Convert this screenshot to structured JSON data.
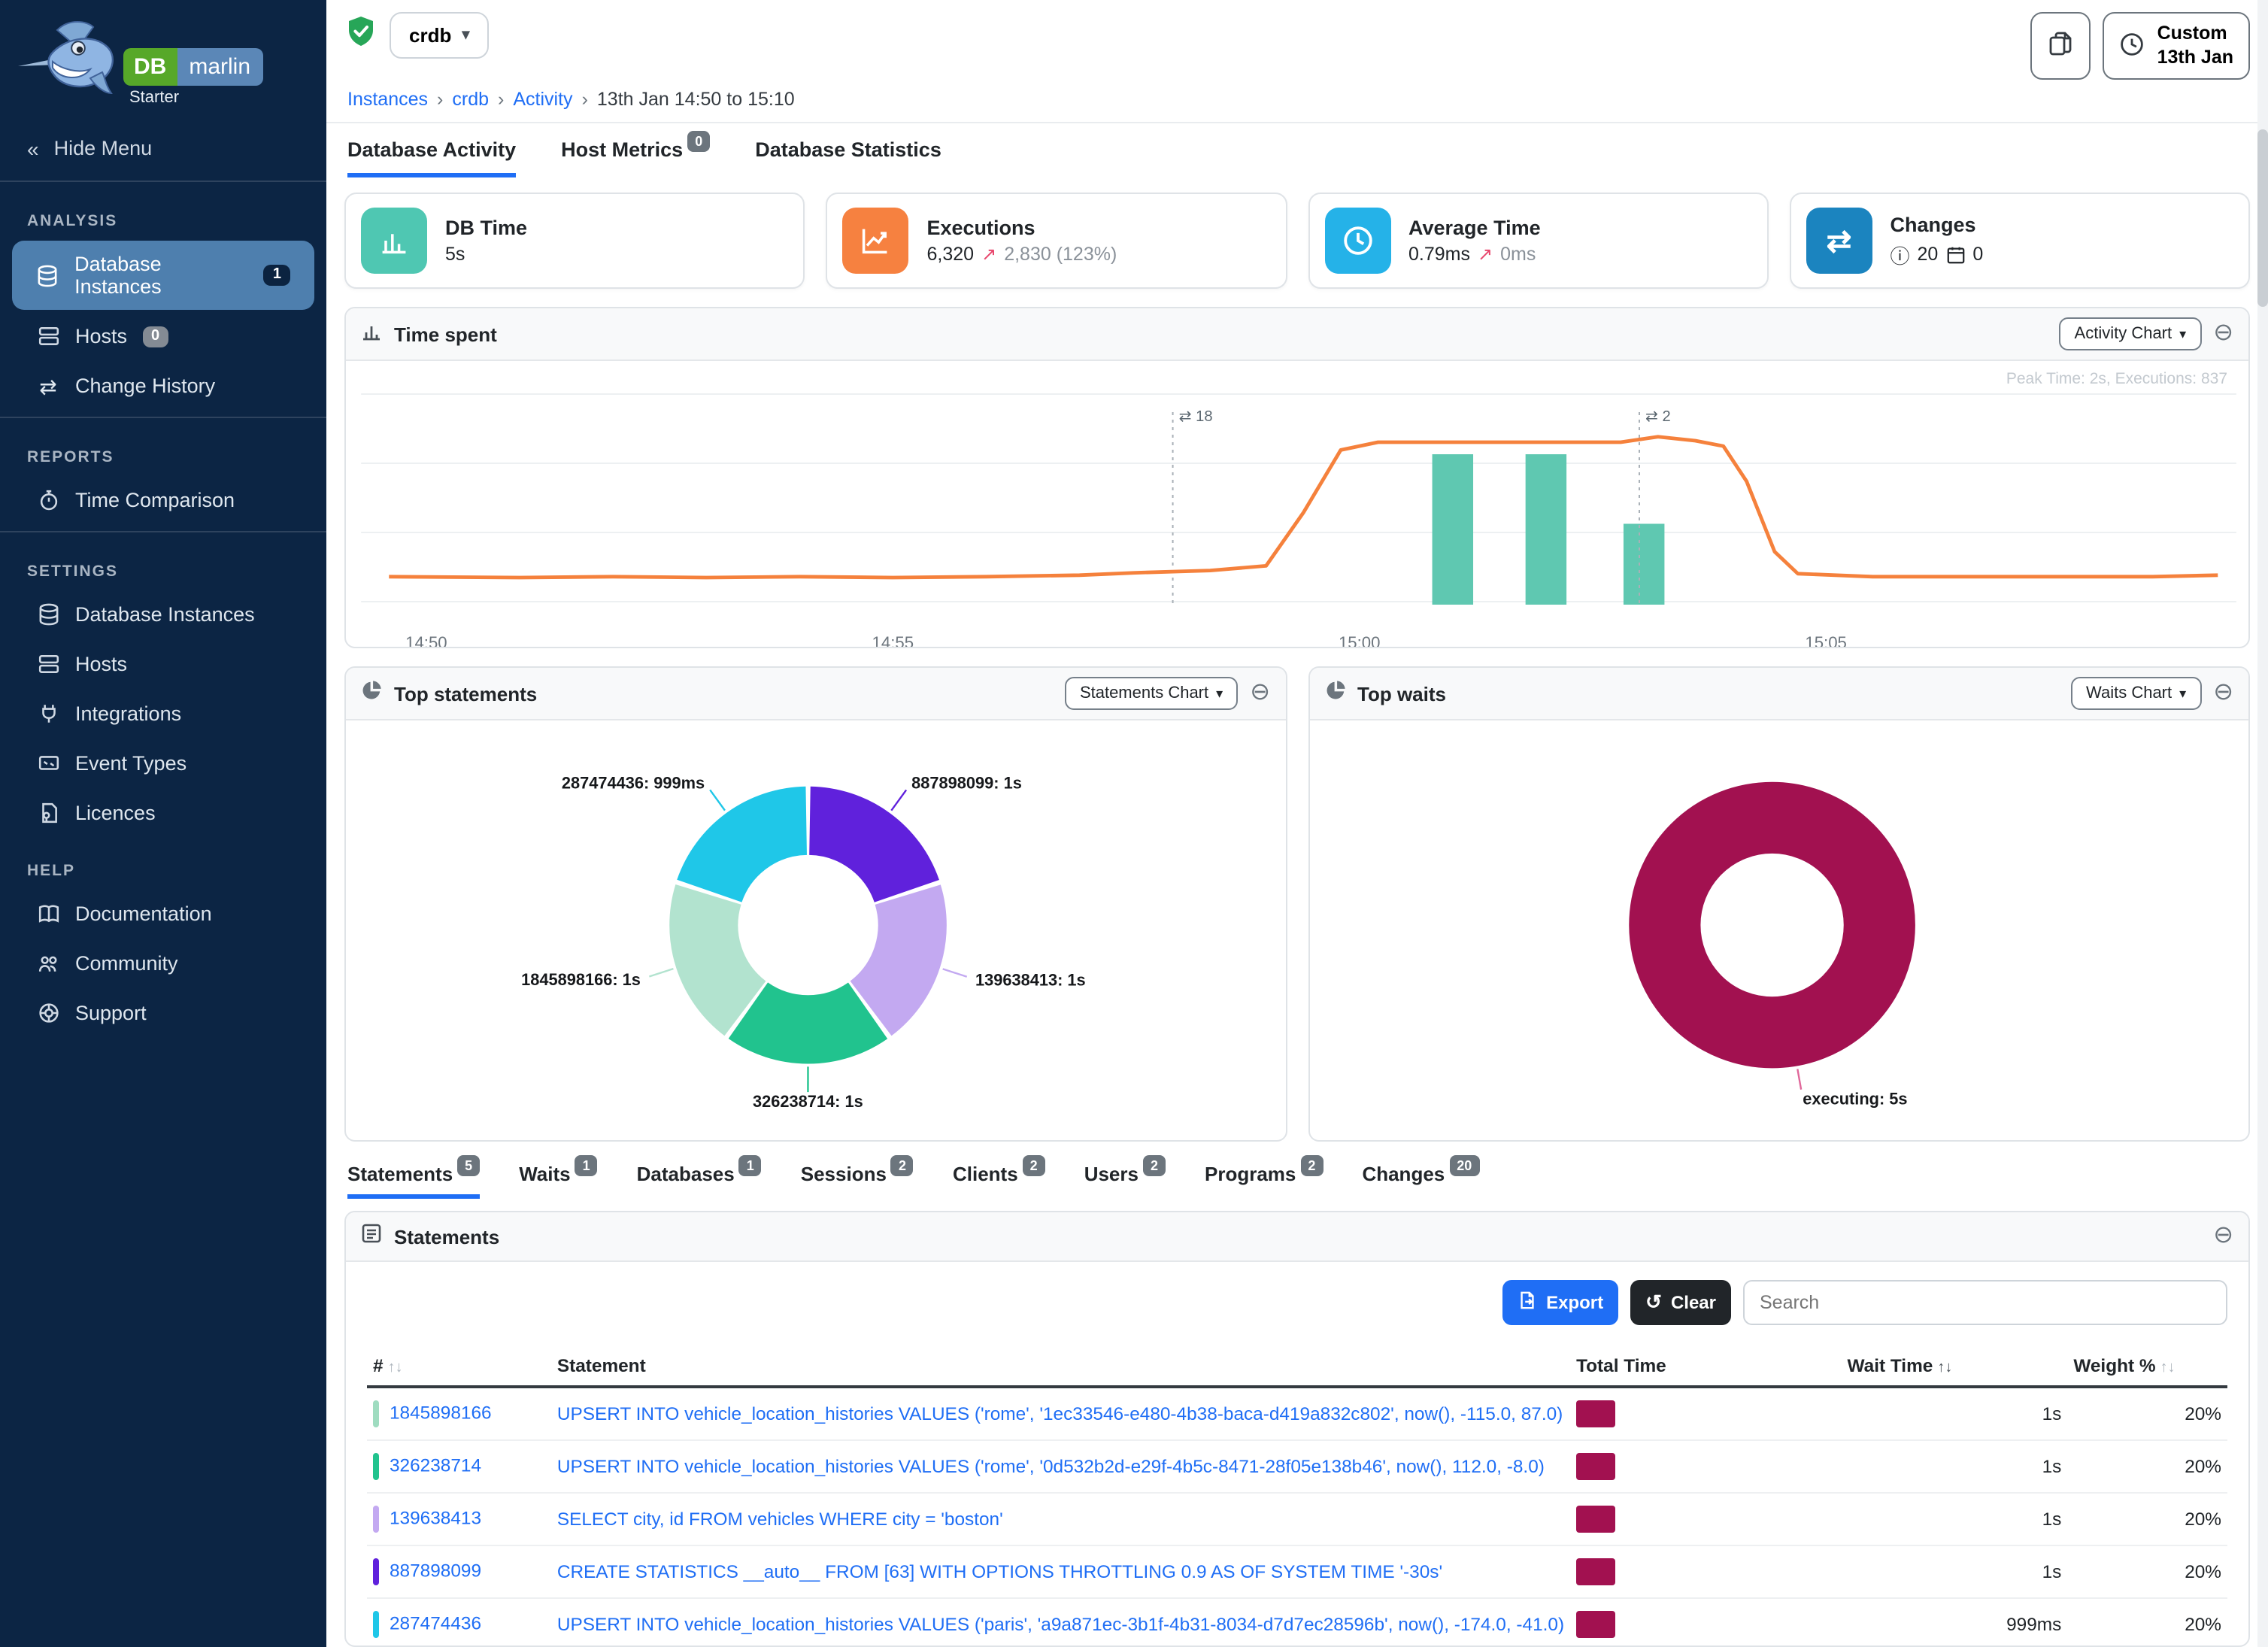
{
  "app": {
    "logo_db": "DB",
    "logo_marlin": "marlin",
    "plan": "Starter"
  },
  "icons": {
    "double_left": "«",
    "swap": "⇄",
    "collapse": "⊖",
    "up_right": "↗",
    "info": "ⓘ",
    "chevron_down": "▾",
    "crumb_sep": "›",
    "sort_up": "↑",
    "sort_down": "↓",
    "undo": "↺"
  },
  "sidebar": {
    "hide_menu": "Hide Menu",
    "sections": [
      {
        "title": "ANALYSIS",
        "items": [
          {
            "label": "Database Instances",
            "badge": "1"
          },
          {
            "label": "Hosts",
            "badge": "0"
          },
          {
            "label": "Change History"
          }
        ]
      },
      {
        "title": "REPORTS",
        "items": [
          {
            "label": "Time Comparison"
          }
        ]
      },
      {
        "title": "SETTINGS",
        "items": [
          {
            "label": "Database Instances"
          },
          {
            "label": "Hosts"
          },
          {
            "label": "Integrations"
          },
          {
            "label": "Event Types"
          },
          {
            "label": "Licences"
          }
        ]
      },
      {
        "title": "HELP",
        "items": [
          {
            "label": "Documentation"
          },
          {
            "label": "Community"
          },
          {
            "label": "Support"
          }
        ]
      }
    ]
  },
  "topbar": {
    "instance": "crdb",
    "breadcrumb": [
      "Instances",
      "crdb",
      "Activity",
      "13th Jan 14:50 to 15:10"
    ],
    "range_button": {
      "line1": "Custom",
      "line2": "13th Jan"
    }
  },
  "tabs": [
    {
      "label": "Database Activity"
    },
    {
      "label": "Host Metrics",
      "badge": "0"
    },
    {
      "label": "Database Statistics"
    }
  ],
  "cards": [
    {
      "title": "DB Time",
      "value": "5s"
    },
    {
      "title": "Executions",
      "value": "6,320",
      "delta": "2,830 (123%)"
    },
    {
      "title": "Average Time",
      "value": "0.79ms",
      "delta": "0ms"
    },
    {
      "title": "Changes",
      "info_count": "20",
      "calendar_count": "0"
    }
  ],
  "panels": {
    "time_spent": {
      "title": "Time spent",
      "chart_button": "Activity Chart",
      "peak_note": "Peak Time: 2s, Executions: 837"
    },
    "top_statements": {
      "title": "Top statements",
      "chart_button": "Statements Chart"
    },
    "top_waits": {
      "title": "Top waits",
      "chart_button": "Waits Chart"
    }
  },
  "chart_data": {
    "activity": {
      "type": "line",
      "title": "Time spent",
      "x_unit": "minutes since 14:50",
      "xlim": [
        -0.5,
        19.5
      ],
      "ylim_seconds": [
        0,
        2.5
      ],
      "executions_axis_max": 837,
      "line_color": "#f5813c",
      "bar_color": "#5fc8b1",
      "line_series": {
        "name": "DB Time (s)",
        "points": [
          [
            -0.4,
            0.28
          ],
          [
            1,
            0.27
          ],
          [
            2,
            0.28
          ],
          [
            3,
            0.27
          ],
          [
            4,
            0.28
          ],
          [
            5,
            0.27
          ],
          [
            6,
            0.28
          ],
          [
            7,
            0.3
          ],
          [
            7.6,
            0.33
          ],
          [
            8.4,
            0.36
          ],
          [
            9.0,
            0.42
          ],
          [
            9.4,
            1.1
          ],
          [
            9.8,
            1.9
          ],
          [
            10.2,
            2.0
          ],
          [
            11,
            2.0
          ],
          [
            12,
            2.0
          ],
          [
            12.8,
            2.0
          ],
          [
            13.2,
            2.07
          ],
          [
            13.6,
            2.02
          ],
          [
            13.9,
            1.95
          ],
          [
            14.15,
            1.5
          ],
          [
            14.45,
            0.6
          ],
          [
            14.7,
            0.32
          ],
          [
            15.5,
            0.28
          ],
          [
            17,
            0.28
          ],
          [
            18.5,
            0.28
          ],
          [
            19.2,
            0.3
          ]
        ]
      },
      "bars": {
        "name": "Executions",
        "points": [
          [
            11.0,
            837
          ],
          [
            12.0,
            837
          ],
          [
            13.05,
            450
          ]
        ]
      },
      "change_markers": [
        {
          "x": 8.0,
          "count": "18"
        },
        {
          "x": 13.0,
          "count": "2"
        }
      ],
      "ticks": [
        [
          0,
          "14:50"
        ],
        [
          5,
          "14:55"
        ],
        [
          10,
          "15:00"
        ],
        [
          15,
          "15:05"
        ]
      ],
      "peak_note": "Peak Time: 2s, Executions: 837"
    },
    "statements_donut": {
      "type": "pie",
      "title": "Top statements",
      "start": "top",
      "direction": "clockwise",
      "segments": [
        {
          "label": "887898099",
          "value": 1000,
          "display": "1s",
          "color": "#6021dc"
        },
        {
          "label": "139638413",
          "value": 1000,
          "display": "1s",
          "color": "#c3a9f1"
        },
        {
          "label": "326238714",
          "value": 1000,
          "display": "1s",
          "color": "#21c38e"
        },
        {
          "label": "1845898166",
          "value": 1000,
          "display": "1s",
          "color": "#b2e3cf"
        },
        {
          "label": "287474436",
          "value": 999,
          "display": "999ms",
          "color": "#1fc7e8"
        }
      ]
    },
    "waits_donut": {
      "type": "pie",
      "title": "Top waits",
      "segments": [
        {
          "label": "executing",
          "value": 5000,
          "display": "5s",
          "color": "#a21150",
          "label_angle": 170,
          "leader_color": "#e0679a"
        }
      ]
    }
  },
  "bottom_tabs": [
    {
      "label": "Statements",
      "badge": "5"
    },
    {
      "label": "Waits",
      "badge": "1"
    },
    {
      "label": "Databases",
      "badge": "1"
    },
    {
      "label": "Sessions",
      "badge": "2"
    },
    {
      "label": "Clients",
      "badge": "2"
    },
    {
      "label": "Users",
      "badge": "2"
    },
    {
      "label": "Programs",
      "badge": "2"
    },
    {
      "label": "Changes",
      "badge": "20"
    }
  ],
  "statements_table": {
    "title": "Statements",
    "export_label": "Export",
    "clear_label": "Clear",
    "search_placeholder": "Search",
    "columns": [
      "#",
      "Statement",
      "Total Time",
      "Wait Time",
      "Weight %"
    ],
    "rows": [
      {
        "id": "1845898166",
        "color": "#9fdcc0",
        "statement": "UPSERT INTO vehicle_location_histories VALUES ('rome', '1ec33546-e480-4b38-baca-d419a832c802', now(), -115.0, 87.0)",
        "wait_time": "1s",
        "weight": "20%"
      },
      {
        "id": "326238714",
        "color": "#21c38e",
        "statement": "UPSERT INTO vehicle_location_histories VALUES ('rome', '0d532b2d-e29f-4b5c-8471-28f05e138b46', now(), 112.0, -8.0)",
        "wait_time": "1s",
        "weight": "20%"
      },
      {
        "id": "139638413",
        "color": "#c3a9f1",
        "statement": "SELECT city, id FROM vehicles WHERE city = 'boston'",
        "wait_time": "1s",
        "weight": "20%"
      },
      {
        "id": "887898099",
        "color": "#6021dc",
        "statement": "CREATE STATISTICS __auto__ FROM [63] WITH OPTIONS THROTTLING 0.9 AS OF SYSTEM TIME '-30s'",
        "wait_time": "1s",
        "weight": "20%"
      },
      {
        "id": "287474436",
        "color": "#1fc7e8",
        "statement": "UPSERT INTO vehicle_location_histories VALUES ('paris', 'a9a871ec-3b1f-4b31-8034-d7d7ec28596b', now(), -174.0, -41.0)",
        "wait_time": "999ms",
        "weight": "20%"
      }
    ]
  },
  "colors": {
    "accent": "#1f6ef5",
    "maroon": "#a21150",
    "line_orange": "#f5813c",
    "bar_teal": "#5fc8b1",
    "sidebar_bg": "#0c2544",
    "active_item": "#4e7fae",
    "card_teal": "#4fc7b2",
    "card_orange": "#f68140",
    "card_sky": "#25b2e8",
    "card_blue": "#1b84bf",
    "delta_pink": "#e8476d"
  }
}
